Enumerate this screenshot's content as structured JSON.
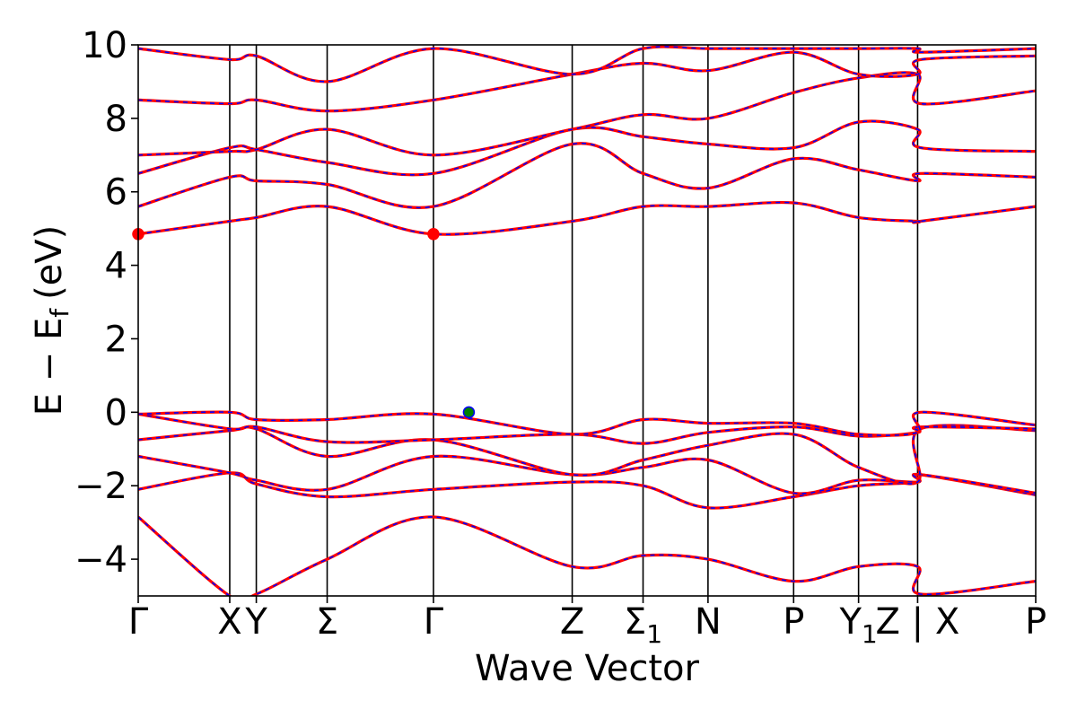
{
  "chart_data": {
    "type": "line",
    "xlabel": "Wave Vector",
    "ylabel": "E − E",
    "ylabel_sub": "f",
    "ylabel_unit": "(eV)",
    "ylim": [
      -5,
      10
    ],
    "y_ticks": [
      -4,
      -2,
      0,
      2,
      4,
      6,
      8,
      10
    ],
    "y_tick_labels": [
      "−4",
      "−2",
      "0",
      "2",
      "4",
      "6",
      "8",
      "10"
    ],
    "x_extent": [
      0,
      3.04
    ],
    "kpoints": [
      {
        "pos": 0.0,
        "label": "Γ"
      },
      {
        "pos": 0.31,
        "label": "X"
      },
      {
        "pos": 0.4,
        "label": "Y"
      },
      {
        "pos": 0.64,
        "label": "Σ"
      },
      {
        "pos": 1.0,
        "label": "Γ"
      },
      {
        "pos": 1.47,
        "label": "Z"
      },
      {
        "pos": 1.71,
        "label": "Σ",
        "sub": "1"
      },
      {
        "pos": 1.93,
        "label": "N"
      },
      {
        "pos": 2.22,
        "label": "P"
      },
      {
        "pos": 2.44,
        "label": "Y",
        "sub": "1"
      },
      {
        "pos": 2.64,
        "label": "Z | X"
      },
      {
        "pos": 3.04,
        "label": "P"
      }
    ],
    "bands": [
      {
        "name": "b1",
        "x": [
          0,
          0.31,
          0.4,
          0.64,
          1.0,
          1.47,
          1.71,
          1.93,
          2.22,
          2.44,
          2.64,
          2.65,
          3.04
        ],
        "y": [
          -2.85,
          -5.0,
          -4.95,
          -4.0,
          -2.85,
          -4.2,
          -3.9,
          -4.0,
          -4.6,
          -4.2,
          -4.2,
          -4.95,
          -4.6
        ]
      },
      {
        "name": "b2",
        "x": [
          0,
          0.31,
          0.4,
          0.64,
          1.0,
          1.47,
          1.71,
          1.93,
          2.22,
          2.44,
          2.64,
          2.65,
          3.04
        ],
        "y": [
          -2.1,
          -1.65,
          -1.95,
          -2.3,
          -2.1,
          -1.9,
          -2.0,
          -2.6,
          -2.3,
          -2.0,
          -1.9,
          -1.7,
          -2.25
        ]
      },
      {
        "name": "b3",
        "x": [
          0,
          0.31,
          0.4,
          0.64,
          1.0,
          1.47,
          1.71,
          1.93,
          2.22,
          2.44,
          2.64,
          2.65,
          3.04
        ],
        "y": [
          -1.2,
          -1.65,
          -1.85,
          -2.1,
          -1.2,
          -1.7,
          -1.5,
          -1.3,
          -2.2,
          -1.85,
          -1.9,
          -1.7,
          -2.2
        ]
      },
      {
        "name": "b4",
        "x": [
          0,
          0.31,
          0.4,
          0.64,
          1.0,
          1.47,
          1.71,
          1.93,
          2.22,
          2.44,
          2.64,
          2.65,
          3.04
        ],
        "y": [
          -0.75,
          -0.5,
          -0.45,
          -1.2,
          -0.75,
          -1.7,
          -1.3,
          -0.9,
          -0.6,
          -1.5,
          -1.9,
          -0.45,
          -0.5
        ]
      },
      {
        "name": "b5",
        "x": [
          0,
          0.31,
          0.4,
          0.64,
          1.0,
          1.47,
          1.71,
          1.93,
          2.22,
          2.44,
          2.64,
          2.65,
          3.04
        ],
        "y": [
          -0.05,
          -0.45,
          -0.4,
          -0.8,
          -0.75,
          -0.6,
          -0.85,
          -0.55,
          -0.4,
          -0.65,
          -0.55,
          -0.4,
          -0.45
        ]
      },
      {
        "name": "b6",
        "x": [
          0,
          0.31,
          0.4,
          0.64,
          1.0,
          1.47,
          1.71,
          1.93,
          2.22,
          2.44,
          2.64,
          2.65,
          3.04
        ],
        "y": [
          -0.05,
          0.0,
          -0.2,
          -0.2,
          -0.05,
          -0.6,
          -0.2,
          -0.3,
          -0.3,
          -0.6,
          -0.55,
          0.0,
          -0.35
        ]
      },
      {
        "name": "b7",
        "x": [
          0,
          0.31,
          0.4,
          0.64,
          1.0,
          1.47,
          1.71,
          1.93,
          2.22,
          2.44,
          2.64,
          2.65,
          3.04
        ],
        "y": [
          4.85,
          5.2,
          5.3,
          5.6,
          4.85,
          5.2,
          5.6,
          5.6,
          5.7,
          5.3,
          5.2,
          5.2,
          5.6
        ]
      },
      {
        "name": "b8",
        "x": [
          0,
          0.31,
          0.4,
          0.64,
          1.0,
          1.47,
          1.71,
          1.93,
          2.22,
          2.44,
          2.64,
          2.65,
          3.04
        ],
        "y": [
          5.6,
          6.4,
          6.3,
          6.2,
          5.6,
          7.3,
          6.5,
          6.1,
          6.9,
          6.6,
          6.3,
          6.5,
          6.4
        ]
      },
      {
        "name": "b9",
        "x": [
          0,
          0.31,
          0.4,
          0.64,
          1.0,
          1.47,
          1.71,
          1.93,
          2.22,
          2.44,
          2.64,
          2.65,
          3.04
        ],
        "y": [
          6.5,
          7.2,
          7.15,
          6.8,
          6.5,
          7.7,
          7.5,
          7.3,
          7.2,
          7.9,
          7.7,
          7.2,
          7.1
        ]
      },
      {
        "name": "b10",
        "x": [
          0,
          0.31,
          0.4,
          0.64,
          1.0,
          1.47,
          1.71,
          1.93,
          2.22,
          2.44,
          2.64,
          2.65,
          3.04
        ],
        "y": [
          7.0,
          7.1,
          7.15,
          7.7,
          7.0,
          7.7,
          8.1,
          8.0,
          8.7,
          9.1,
          9.2,
          8.4,
          8.75
        ]
      },
      {
        "name": "b11",
        "x": [
          0,
          0.31,
          0.4,
          0.64,
          1.0,
          1.47,
          1.71,
          1.93,
          2.22,
          2.44,
          2.64,
          2.65,
          3.04
        ],
        "y": [
          8.5,
          8.4,
          8.5,
          8.2,
          8.5,
          9.2,
          9.5,
          9.3,
          9.8,
          9.2,
          9.2,
          9.6,
          9.7
        ]
      },
      {
        "name": "b12",
        "x": [
          0,
          0.31,
          0.4,
          0.64,
          1.0,
          1.47,
          1.71,
          1.93,
          2.22,
          2.44,
          2.64,
          2.65,
          3.04
        ],
        "y": [
          9.9,
          9.6,
          9.7,
          9.0,
          9.9,
          9.2,
          9.9,
          9.9,
          9.9,
          9.9,
          9.9,
          9.8,
          9.9
        ]
      }
    ],
    "markers": [
      {
        "name": "cbm-gamma-left",
        "x": 0.0,
        "y": 4.85,
        "color": "#ff0000"
      },
      {
        "name": "cbm-gamma-mid",
        "x": 1.0,
        "y": 4.85,
        "color": "#ff0000"
      },
      {
        "name": "vbm",
        "x": 1.12,
        "y": 0.0,
        "color": "#008000"
      }
    ],
    "colors": {
      "band_solid": "#ff0000",
      "band_dash": "#0000ff",
      "frame": "#000000"
    },
    "grid": false
  }
}
